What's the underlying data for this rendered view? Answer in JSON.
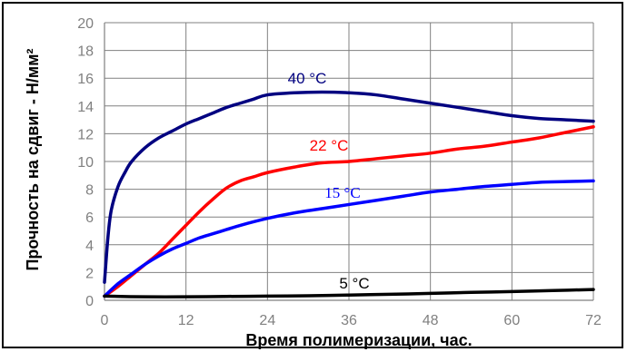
{
  "chart_data": {
    "type": "line",
    "title": "",
    "xlabel": "Время полимеризации, час.",
    "ylabel": "Прочность на сдвиг - Н/мм²",
    "xlim": [
      0,
      72
    ],
    "ylim": [
      0,
      20
    ],
    "x_ticks": [
      "0",
      "12",
      "24",
      "36",
      "48",
      "60",
      "72"
    ],
    "y_ticks": [
      "0",
      "2",
      "4",
      "6",
      "8",
      "10",
      "12",
      "14",
      "16",
      "18",
      "20"
    ],
    "grid": true,
    "series": [
      {
        "name": "40 °C",
        "color": "#000080",
        "x": [
          0,
          0.5,
          1,
          2,
          3,
          4,
          6,
          8,
          10,
          12,
          14,
          16,
          18,
          20,
          22,
          24,
          28,
          32,
          36,
          40,
          44,
          48,
          52,
          56,
          60,
          64,
          68,
          72
        ],
        "y": [
          1.3,
          4.5,
          6.5,
          8.2,
          9.2,
          10.0,
          11.0,
          11.7,
          12.2,
          12.7,
          13.1,
          13.5,
          13.9,
          14.2,
          14.5,
          14.8,
          14.95,
          15.0,
          14.95,
          14.8,
          14.5,
          14.2,
          13.9,
          13.6,
          13.3,
          13.1,
          13.0,
          12.9
        ]
      },
      {
        "name": "22 °C",
        "color": "#ff0000",
        "x": [
          0,
          2,
          4,
          6,
          8,
          10,
          12,
          14,
          16,
          18,
          20,
          22,
          24,
          28,
          32,
          36,
          40,
          44,
          48,
          52,
          56,
          60,
          64,
          68,
          72
        ],
        "y": [
          0.3,
          1.0,
          1.8,
          2.6,
          3.4,
          4.4,
          5.4,
          6.4,
          7.3,
          8.1,
          8.6,
          8.9,
          9.2,
          9.6,
          9.9,
          10.0,
          10.2,
          10.4,
          10.6,
          10.9,
          11.1,
          11.4,
          11.7,
          12.1,
          12.5
        ]
      },
      {
        "name": "15 °C",
        "color": "#0000ff",
        "x": [
          0,
          2,
          4,
          6,
          8,
          10,
          12,
          14,
          16,
          18,
          20,
          24,
          28,
          32,
          36,
          40,
          44,
          48,
          52,
          56,
          60,
          64,
          68,
          72
        ],
        "y": [
          0.3,
          1.2,
          1.9,
          2.6,
          3.2,
          3.7,
          4.1,
          4.5,
          4.8,
          5.1,
          5.4,
          5.9,
          6.3,
          6.6,
          6.9,
          7.2,
          7.5,
          7.8,
          8.0,
          8.2,
          8.35,
          8.5,
          8.55,
          8.6
        ]
      },
      {
        "name": "5 °C",
        "color": "#000000",
        "x": [
          0,
          6,
          12,
          18,
          24,
          30,
          36,
          42,
          48,
          54,
          60,
          66,
          72
        ],
        "y": [
          0.3,
          0.25,
          0.25,
          0.28,
          0.3,
          0.33,
          0.38,
          0.43,
          0.5,
          0.57,
          0.63,
          0.7,
          0.78
        ]
      }
    ]
  }
}
